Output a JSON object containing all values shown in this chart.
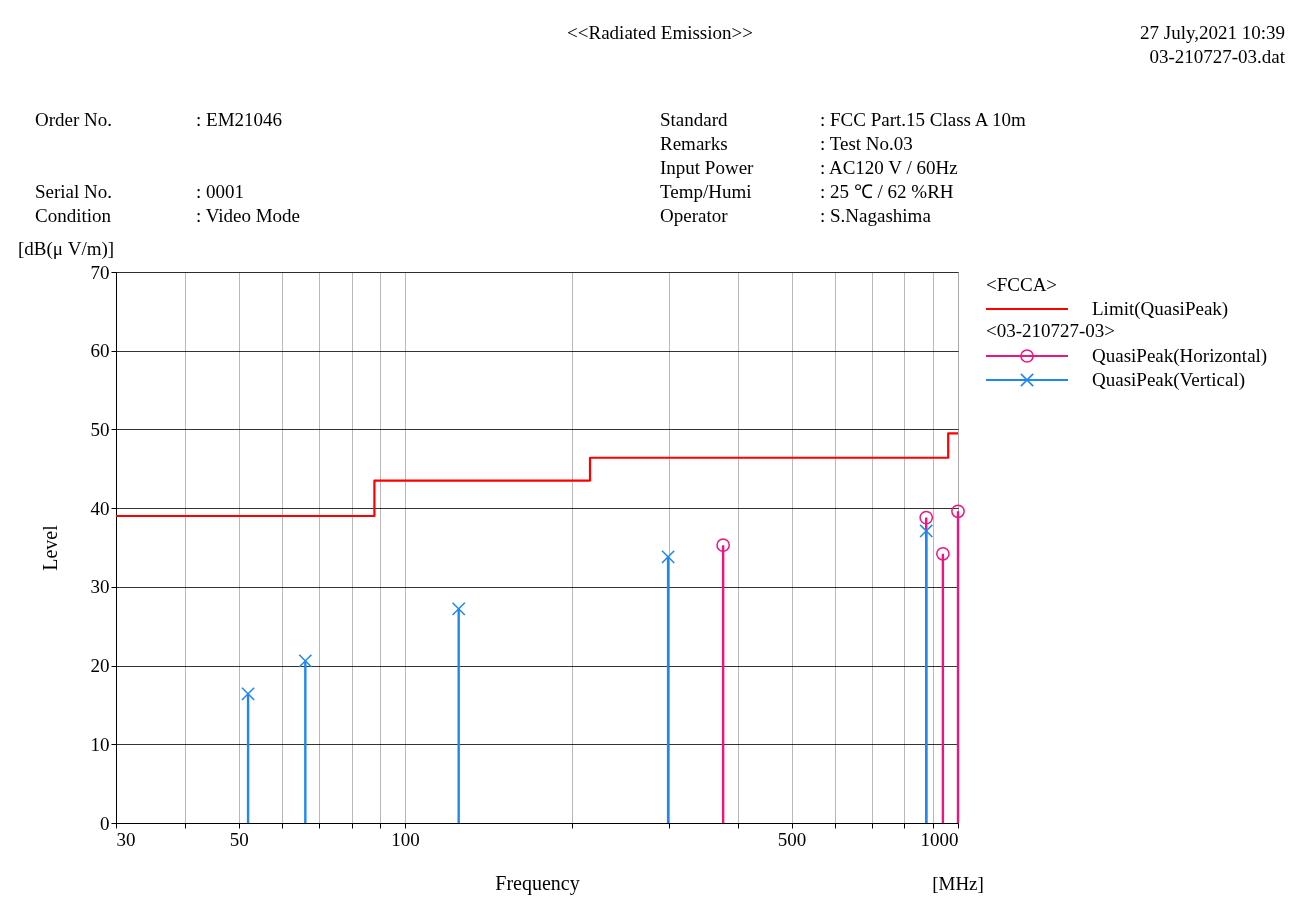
{
  "chart_data": {
    "type": "lollipop",
    "title": "<<Radiated Emission>>",
    "xlabel": "Frequency",
    "ylabel": "Level",
    "annotations": [
      "27 July,2021 10:39",
      "03-210727-03.dat",
      "Order No.",
      ": EM21046",
      "Serial No.",
      ": 0001",
      "Condition",
      ": Video Mode",
      "Standard",
      ": FCC Part.15 Class A 10m",
      "Remarks",
      ": Test No.03",
      "Input Power",
      ": AC120 V / 60Hz",
      "Temp/Humi",
      ": 25 ℃ / 62 %RH",
      "Operator",
      ": S.Nagashima",
      "[dB(μ V/m)]",
      "[MHz]",
      "<FCCA>",
      "<03-210727-03>"
    ],
    "log": "x",
    "grid": true,
    "legend": "right",
    "xlim": [
      30,
      1000
    ],
    "ylim": [
      0,
      70
    ],
    "xticks": [
      30,
      {
        "value": 40,
        "label": null
      },
      50,
      {
        "value": 60,
        "label": null
      },
      {
        "value": 70,
        "label": null
      },
      {
        "value": 80,
        "label": null
      },
      {
        "value": 90,
        "label": null
      },
      100,
      {
        "value": 200,
        "label": null
      },
      {
        "value": 300,
        "label": null
      },
      {
        "value": 400,
        "label": null
      },
      500,
      {
        "value": 600,
        "label": null
      },
      {
        "value": 700,
        "label": null
      },
      {
        "value": 800,
        "label": null
      },
      {
        "value": 900,
        "label": null
      },
      1000
    ],
    "yticks": [
      0,
      10,
      20,
      30,
      40,
      50,
      60,
      70
    ],
    "series": [
      {
        "name": "Limit(QuasiPeak)",
        "type": "step",
        "color": "#ff0000",
        "marker": "none",
        "x": [
          30,
          88,
          216,
          960,
          1000
        ],
        "values": [
          39.0,
          43.5,
          46.4,
          49.5,
          49.5
        ]
      },
      {
        "name": "QuasiPeak(Horizontal)",
        "color": "#f0147f",
        "marker": "circle",
        "x": [
          376,
          876,
          939,
          1000
        ],
        "values": [
          35.3,
          38.8,
          34.2,
          39.6
        ]
      },
      {
        "name": "QuasiPeak(Vertical)",
        "color": "#1e88f0",
        "marker": "cross",
        "x": [
          52,
          66,
          125,
          299,
          876
        ],
        "values": [
          16.4,
          20.6,
          27.2,
          33.8,
          37.1
        ]
      }
    ]
  }
}
